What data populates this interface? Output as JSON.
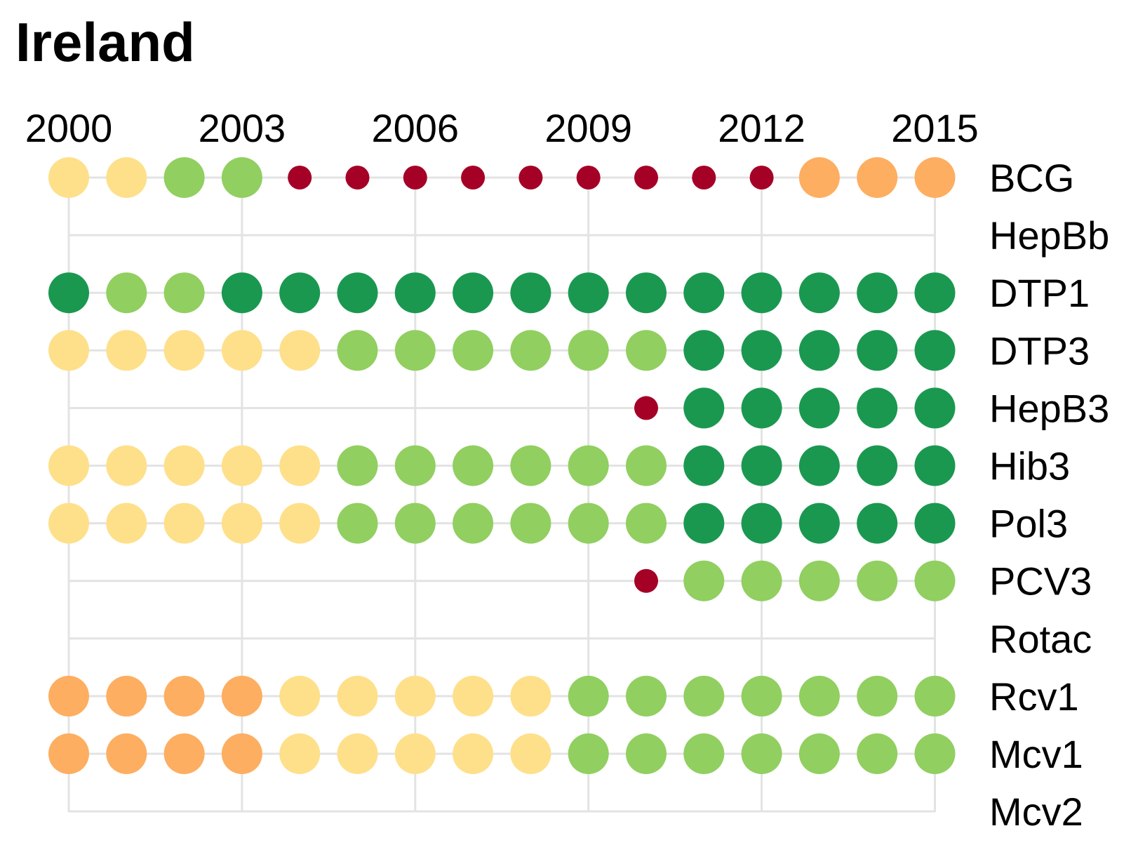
{
  "chart_data": {
    "type": "dot-matrix",
    "title": "Ireland",
    "years": [
      2000,
      2001,
      2002,
      2003,
      2004,
      2005,
      2006,
      2007,
      2008,
      2009,
      2010,
      2011,
      2012,
      2013,
      2014,
      2015
    ],
    "x_tick_labels": [
      "2000",
      "2003",
      "2006",
      "2009",
      "2012",
      "2015"
    ],
    "x_tick_years": [
      2000,
      2003,
      2006,
      2009,
      2012,
      2015
    ],
    "vertical_grid_years": [
      2000,
      2003,
      2006,
      2009,
      2012,
      2015
    ],
    "grid": true,
    "categories": [
      "BCG",
      "HepBb",
      "DTP1",
      "DTP3",
      "HepB3",
      "Hib3",
      "Pol3",
      "PCV3",
      "Rotac",
      "Rcv1",
      "Mcv1",
      "Mcv2"
    ],
    "level_colors": {
      "0": "#a50026",
      "2": "#fdae61",
      "3": "#fee08b",
      "4": "#91cf60",
      "5": "#1a9850"
    },
    "series": [
      {
        "name": "BCG",
        "levels": [
          3,
          3,
          4,
          4,
          0,
          0,
          0,
          0,
          0,
          0,
          0,
          0,
          0,
          2,
          2,
          2
        ]
      },
      {
        "name": "HepBb",
        "levels": [
          null,
          null,
          null,
          null,
          null,
          null,
          null,
          null,
          null,
          null,
          null,
          null,
          null,
          null,
          null,
          null
        ]
      },
      {
        "name": "DTP1",
        "levels": [
          5,
          4,
          4,
          5,
          5,
          5,
          5,
          5,
          5,
          5,
          5,
          5,
          5,
          5,
          5,
          5
        ]
      },
      {
        "name": "DTP3",
        "levels": [
          3,
          3,
          3,
          3,
          3,
          4,
          4,
          4,
          4,
          4,
          4,
          5,
          5,
          5,
          5,
          5
        ]
      },
      {
        "name": "HepB3",
        "levels": [
          null,
          null,
          null,
          null,
          null,
          null,
          null,
          null,
          null,
          null,
          0,
          5,
          5,
          5,
          5,
          5
        ]
      },
      {
        "name": "Hib3",
        "levels": [
          3,
          3,
          3,
          3,
          3,
          4,
          4,
          4,
          4,
          4,
          4,
          5,
          5,
          5,
          5,
          5
        ]
      },
      {
        "name": "Pol3",
        "levels": [
          3,
          3,
          3,
          3,
          3,
          4,
          4,
          4,
          4,
          4,
          4,
          5,
          5,
          5,
          5,
          5
        ]
      },
      {
        "name": "PCV3",
        "levels": [
          null,
          null,
          null,
          null,
          null,
          null,
          null,
          null,
          null,
          null,
          0,
          4,
          4,
          4,
          4,
          4
        ]
      },
      {
        "name": "Rotac",
        "levels": [
          null,
          null,
          null,
          null,
          null,
          null,
          null,
          null,
          null,
          null,
          null,
          null,
          null,
          null,
          null,
          null
        ]
      },
      {
        "name": "Rcv1",
        "levels": [
          2,
          2,
          2,
          2,
          3,
          3,
          3,
          3,
          3,
          4,
          4,
          4,
          4,
          4,
          4,
          4
        ]
      },
      {
        "name": "Mcv1",
        "levels": [
          2,
          2,
          2,
          2,
          3,
          3,
          3,
          3,
          3,
          4,
          4,
          4,
          4,
          4,
          4,
          4
        ]
      },
      {
        "name": "Mcv2",
        "levels": [
          null,
          null,
          null,
          null,
          null,
          null,
          null,
          null,
          null,
          null,
          null,
          null,
          null,
          null,
          null,
          null
        ]
      }
    ]
  }
}
